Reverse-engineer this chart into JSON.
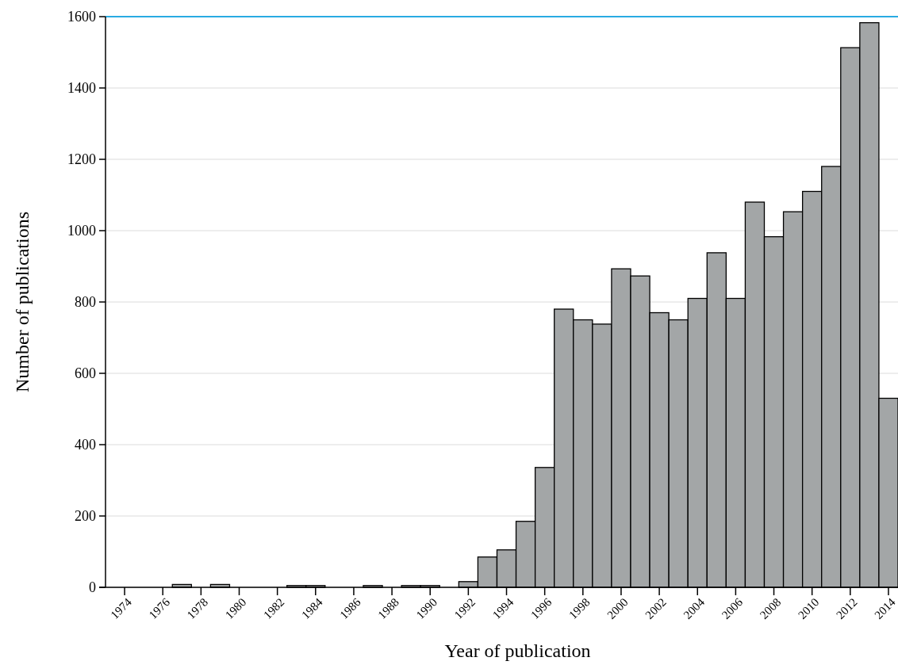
{
  "chart_data": {
    "type": "histogram",
    "xlabel": "Year of publication",
    "ylabel": "Number of publications",
    "bins": [
      1973.5,
      1974.5,
      1975.5,
      1976.5,
      1977.5,
      1978.5,
      1979.5,
      1980.5,
      1981.5,
      1982.5,
      1983.5,
      1984.5,
      1985.5,
      1986.5,
      1987.5,
      1988.5,
      1989.5,
      1990.5,
      1991.5,
      1992.5,
      1993.5,
      1994.5,
      1995.5,
      1996.5,
      1997.5,
      1998.5,
      1999.5,
      2000.5,
      2001.5,
      2002.5,
      2003.5,
      2004.5,
      2005.5,
      2006.5,
      2007.5,
      2008.5,
      2009.5,
      2010.5,
      2011.5,
      2012.5,
      2013.5,
      2014.5
    ],
    "values": [
      0,
      0,
      0,
      8,
      0,
      8,
      0,
      0,
      0,
      5,
      5,
      0,
      0,
      5,
      0,
      5,
      5,
      0,
      16,
      85,
      105,
      185,
      336,
      780,
      750,
      738,
      893,
      873,
      770,
      750,
      810,
      938,
      810,
      1080,
      983,
      1053,
      1110,
      1180,
      1513,
      1583,
      530
    ],
    "color": "#a3a6a7",
    "xlim": [
      1973,
      2014.5
    ],
    "xticks": [
      1974,
      1976,
      1978,
      1980,
      1982,
      1984,
      1986,
      1988,
      1990,
      1992,
      1994,
      1996,
      1998,
      2000,
      2002,
      2004,
      2006,
      2008,
      2010,
      2012,
      2014
    ],
    "ylim": [
      0,
      1600
    ],
    "yticks": [
      0,
      200,
      400,
      600,
      800,
      1000,
      1200,
      1400,
      1600
    ],
    "grid": "y",
    "ref_lines": [
      {
        "axis": "y",
        "value": 1600,
        "color": "#29abe2"
      }
    ]
  }
}
